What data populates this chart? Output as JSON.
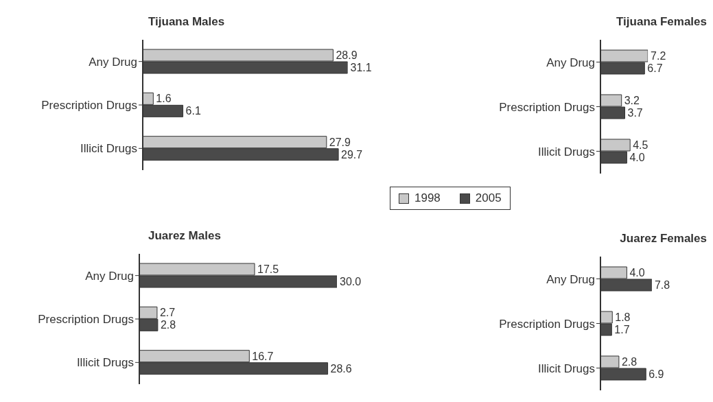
{
  "chart_data": [
    {
      "type": "bar",
      "title": "Tijuana Males",
      "orientation": "horizontal",
      "categories": [
        "Any Drug",
        "Prescription Drugs",
        "Illicit Drugs"
      ],
      "legend": "bottom right",
      "series": [
        {
          "name": "1998",
          "color": "#c8c8c8",
          "values": [
            28.9,
            1.6,
            27.9
          ],
          "value_labels": [
            "28.9",
            "1.6",
            "27.9"
          ]
        },
        {
          "name": "2005",
          "color": "#4a4a4a",
          "values": [
            31.1,
            6.1,
            29.7
          ],
          "value_labels": [
            "31.1",
            "6.1",
            "29.7"
          ]
        }
      ]
    },
    {
      "type": "bar",
      "title": "Tijuana Females",
      "orientation": "horizontal",
      "categories": [
        "Any Drug",
        "Prescription Drugs",
        "Illicit Drugs"
      ],
      "series": [
        {
          "name": "1998",
          "color": "#c8c8c8",
          "values": [
            7.2,
            3.2,
            4.5
          ],
          "value_labels": [
            "7.2",
            "3.2",
            "4.5"
          ]
        },
        {
          "name": "2005",
          "color": "#4a4a4a",
          "values": [
            6.7,
            3.7,
            4.0
          ],
          "value_labels": [
            "6.7",
            "3.7",
            "4.0"
          ]
        }
      ]
    },
    {
      "type": "bar",
      "title": "Juarez Males",
      "orientation": "horizontal",
      "categories": [
        "Any Drug",
        "Prescription Drugs",
        "Illicit Drugs"
      ],
      "series": [
        {
          "name": "1998",
          "color": "#c8c8c8",
          "values": [
            17.5,
            2.7,
            16.7
          ],
          "value_labels": [
            "17.5",
            "2.7",
            "16.7"
          ]
        },
        {
          "name": "2005",
          "color": "#4a4a4a",
          "values": [
            30.0,
            2.8,
            28.6
          ],
          "value_labels": [
            "30.0",
            "2.8",
            "28.6"
          ]
        }
      ]
    },
    {
      "type": "bar",
      "title": "Juarez Females",
      "orientation": "horizontal",
      "categories": [
        "Any Drug",
        "Prescription Drugs",
        "Illicit Drugs"
      ],
      "series": [
        {
          "name": "1998",
          "color": "#c8c8c8",
          "values": [
            4.0,
            1.8,
            2.8
          ],
          "value_labels": [
            "4.0",
            "1.8",
            "2.8"
          ]
        },
        {
          "name": "2005",
          "color": "#4a4a4a",
          "values": [
            7.8,
            1.7,
            6.9
          ],
          "value_labels": [
            "7.8",
            "1.7",
            "6.9"
          ]
        }
      ]
    }
  ]
}
